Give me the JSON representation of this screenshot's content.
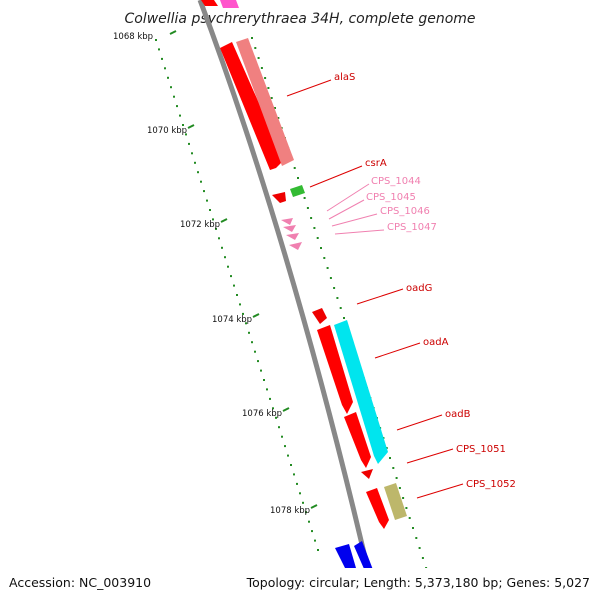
{
  "title": "Colwellia psychrerythraea 34H, complete genome",
  "footer": {
    "accession": "Accession: NC_003910",
    "summary": "Topology: circular; Length: 5,373,180 bp; Genes: 5,027"
  },
  "kbp_ticks": [
    "1068 kbp",
    "1070 kbp",
    "1072 kbp",
    "1074 kbp",
    "1076 kbp",
    "1078 kbp"
  ],
  "genes": [
    {
      "name": "alaS",
      "color": "#cc0000"
    },
    {
      "name": "csrA",
      "color": "#cc0000"
    },
    {
      "name": "CPS_1044",
      "color": "#f080b0"
    },
    {
      "name": "CPS_1045",
      "color": "#f080b0"
    },
    {
      "name": "CPS_1046",
      "color": "#f080b0"
    },
    {
      "name": "CPS_1047",
      "color": "#f080b0"
    },
    {
      "name": "oadG",
      "color": "#cc0000"
    },
    {
      "name": "oadA",
      "color": "#cc0000"
    },
    {
      "name": "oadB",
      "color": "#cc0000"
    },
    {
      "name": "CPS_1051",
      "color": "#cc0000"
    },
    {
      "name": "CPS_1052",
      "color": "#cc0000"
    }
  ],
  "colors": {
    "backbone": "#888888",
    "cds": "#ff0000",
    "rna": "#f080b0",
    "match": "#f08080",
    "green": "#22aa22",
    "cyan": "#00e5ee",
    "khaki": "#bdb76b",
    "blue": "#0000ee",
    "gc_dots": "#228b22"
  }
}
